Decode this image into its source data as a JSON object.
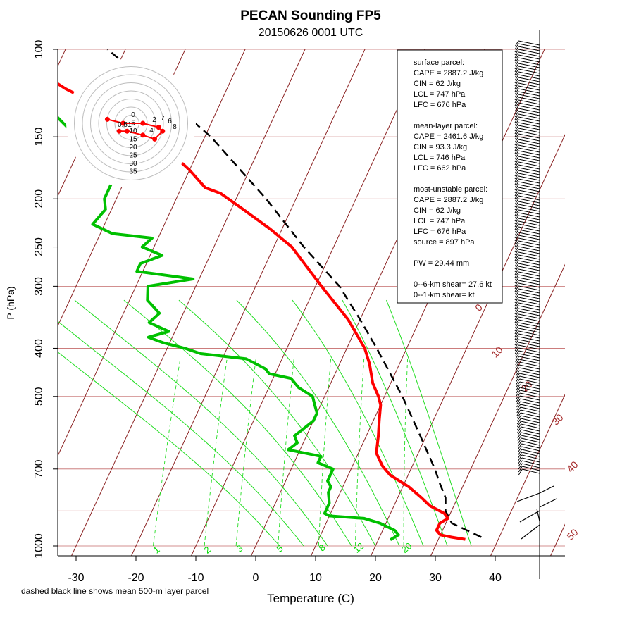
{
  "chart_data": {
    "type": "skew-t",
    "title": "PECAN Sounding FP5",
    "subtitle": "20150626 0001 UTC",
    "xlabel": "Temperature (C)",
    "ylabel": "P (hPa)",
    "note": "dashed black line shows mean 500-m layer parcel",
    "x_ticks": [
      -30,
      -20,
      -10,
      0,
      10,
      20,
      30,
      40
    ],
    "y_ticks": [
      100,
      150,
      200,
      250,
      300,
      400,
      500,
      700,
      1000
    ],
    "isotherm_labels": [
      "0",
      "10",
      "20",
      "30",
      "40",
      "50"
    ],
    "mixing_ratio_labels": [
      "1",
      "2",
      "3",
      "5",
      "8",
      "12",
      "20"
    ],
    "temperature_profile": [
      [
        970,
        34.5
      ],
      [
        960,
        32
      ],
      [
        950,
        30
      ],
      [
        930,
        29
      ],
      [
        900,
        29
      ],
      [
        880,
        30
      ],
      [
        860,
        29
      ],
      [
        830,
        26
      ],
      [
        800,
        24
      ],
      [
        760,
        21
      ],
      [
        720,
        17
      ],
      [
        690,
        15
      ],
      [
        670,
        14
      ],
      [
        650,
        13
      ],
      [
        600,
        12
      ],
      [
        560,
        11
      ],
      [
        520,
        10
      ],
      [
        500,
        9
      ],
      [
        470,
        7
      ],
      [
        430,
        5
      ],
      [
        400,
        3
      ],
      [
        350,
        -2
      ],
      [
        300,
        -9
      ],
      [
        250,
        -17
      ],
      [
        230,
        -22
      ],
      [
        210,
        -28
      ],
      [
        195,
        -33
      ],
      [
        190,
        -36
      ],
      [
        175,
        -40
      ],
      [
        160,
        -45
      ],
      [
        150,
        -50
      ],
      [
        140,
        -55
      ],
      [
        130,
        -60
      ],
      [
        120,
        -67
      ],
      [
        112,
        -72
      ],
      [
        104,
        -76
      ],
      [
        100,
        -78
      ]
    ],
    "dewpoint_profile": [
      [
        972,
        22
      ],
      [
        950,
        23
      ],
      [
        930,
        22
      ],
      [
        900,
        19
      ],
      [
        880,
        16
      ],
      [
        870,
        10
      ],
      [
        860,
        9
      ],
      [
        820,
        9
      ],
      [
        780,
        8
      ],
      [
        760,
        8
      ],
      [
        740,
        7
      ],
      [
        700,
        7
      ],
      [
        680,
        4
      ],
      [
        670,
        4
      ],
      [
        660,
        4
      ],
      [
        650,
        1
      ],
      [
        640,
        -2
      ],
      [
        620,
        -1
      ],
      [
        600,
        -2
      ],
      [
        580,
        -1
      ],
      [
        560,
        0
      ],
      [
        540,
        0
      ],
      [
        520,
        -1
      ],
      [
        500,
        -2
      ],
      [
        480,
        -5
      ],
      [
        470,
        -6
      ],
      [
        460,
        -7
      ],
      [
        450,
        -11
      ],
      [
        440,
        -12
      ],
      [
        420,
        -16
      ],
      [
        410,
        -24
      ],
      [
        400,
        -27
      ],
      [
        390,
        -31
      ],
      [
        380,
        -34
      ],
      [
        370,
        -31
      ],
      [
        355,
        -35
      ],
      [
        340,
        -34
      ],
      [
        320,
        -37
      ],
      [
        300,
        -38
      ],
      [
        290,
        -31
      ],
      [
        280,
        -41
      ],
      [
        270,
        -41
      ],
      [
        260,
        -38
      ],
      [
        250,
        -42
      ],
      [
        240,
        -41
      ],
      [
        235,
        -48
      ],
      [
        225,
        -52
      ],
      [
        210,
        -51
      ],
      [
        200,
        -52
      ],
      [
        190,
        -52
      ],
      [
        180,
        -52
      ],
      [
        170,
        -56
      ],
      [
        160,
        -58
      ],
      [
        140,
        -65
      ],
      [
        120,
        -73
      ],
      [
        100,
        -80
      ]
    ],
    "parcel_profile": [
      [
        960,
        37
      ],
      [
        900,
        31
      ],
      [
        850,
        29
      ],
      [
        800,
        28
      ],
      [
        750,
        26
      ],
      [
        700,
        24
      ],
      [
        600,
        19
      ],
      [
        500,
        13
      ],
      [
        400,
        5
      ],
      [
        350,
        0
      ],
      [
        300,
        -6
      ],
      [
        250,
        -15
      ],
      [
        200,
        -25
      ],
      [
        150,
        -39
      ],
      [
        120,
        -52
      ],
      [
        100,
        -63
      ]
    ],
    "hodograph_rings": [
      "0",
      "5",
      "10",
      "15",
      "20",
      "25",
      "30",
      "35"
    ],
    "hodograph_labels": [
      "0.5",
      "1",
      "2",
      "4",
      "6",
      "7",
      "8"
    ],
    "hodograph_points": [
      [
        -6,
        1
      ],
      [
        -2,
        0
      ],
      [
        3,
        0
      ],
      [
        7,
        -1
      ],
      [
        8,
        -2
      ],
      [
        6,
        -4
      ],
      [
        3,
        -3
      ],
      [
        -1,
        -2
      ],
      [
        -3,
        -2
      ]
    ]
  },
  "info_panel": {
    "lines": [
      "surface parcel:",
      "CAPE = 2887.2 J/kg",
      "CIN = 62 J/kg",
      "LCL = 747 hPa",
      "LFC = 676 hPa",
      "",
      "mean-layer parcel:",
      "CAPE = 2461.6 J/kg",
      "CIN = 93.3 J/kg",
      "LCL = 746 hPa",
      "LFC = 662 hPa",
      "",
      "most-unstable parcel:",
      "CAPE = 2887.2 J/kg",
      "CIN = 62 J/kg",
      "LCL = 747 hPa",
      "LFC = 676 hPa",
      "source = 897 hPa",
      "",
      "PW = 29.44 mm",
      "",
      "0--6-km shear= 27.6 kt",
      "0--1-km shear= kt"
    ]
  },
  "colors": {
    "temperature": "#ff0000",
    "dewpoint": "#00c000",
    "isobar": "#c46a6a",
    "isotherm": "#8b2222",
    "mixing_ratio": "#22dd22",
    "parcel": "#000000"
  }
}
